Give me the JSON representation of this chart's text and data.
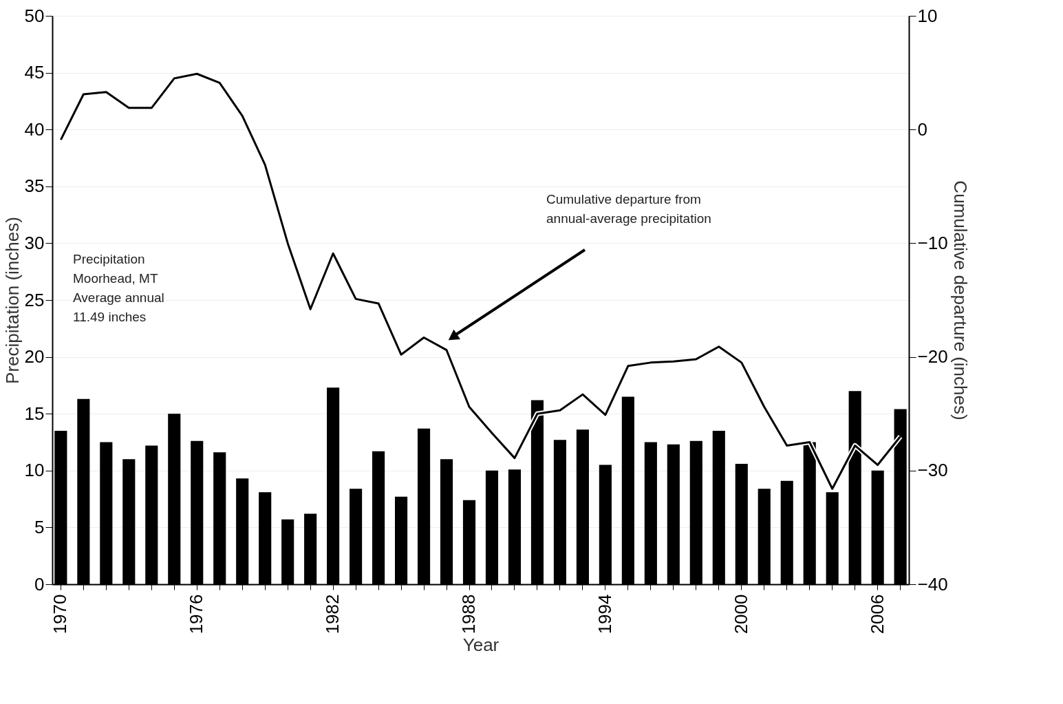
{
  "chart_data": {
    "type": "bar",
    "categories": [
      "1970",
      null,
      null,
      null,
      null,
      null,
      "1976",
      null,
      null,
      null,
      null,
      null,
      "1982",
      null,
      null,
      null,
      null,
      null,
      "1988",
      null,
      null,
      null,
      null,
      null,
      "1994",
      null,
      null,
      null,
      null,
      null,
      "2000",
      null,
      null,
      null,
      null,
      null,
      "2006",
      null
    ],
    "series": [
      {
        "color": "#000000",
        "values": [
          13.5,
          16.3,
          12.5,
          11.0,
          12.2,
          15.0,
          12.6,
          11.6,
          9.3,
          8.1,
          5.7,
          6.2,
          17.3,
          8.4,
          11.7,
          7.7,
          13.7,
          11.0,
          7.4,
          10.0,
          10.1,
          16.2,
          12.7,
          13.6,
          10.5,
          16.5,
          12.5,
          12.3,
          12.6,
          13.5,
          10.6,
          8.4,
          9.1,
          12.5,
          8.1,
          17.0,
          10.0,
          15.4
        ]
      },
      {
        "type": "line",
        "axis": "y2",
        "color": "#000000",
        "values": [
          -0.9,
          3.1,
          3.3,
          1.9,
          1.9,
          4.5,
          4.9,
          4.1,
          1.2,
          -3.1,
          -10.0,
          -15.8,
          -10.9,
          -14.9,
          -15.3,
          -19.8,
          -18.3,
          -19.4,
          -24.4,
          -26.7,
          -28.9,
          -25.0,
          -24.7,
          -23.3,
          -25.1,
          -20.8,
          -20.5,
          -20.4,
          -20.2,
          -19.1,
          -20.5,
          -24.4,
          -27.8,
          -27.5,
          -31.6,
          -27.8,
          -29.5,
          -27.0
        ]
      }
    ],
    "xlabel": "Year",
    "ylabel": "Precipitation (inches)",
    "y2label": "Cumulative departure (inches)",
    "ylim": [
      0,
      50
    ],
    "yticks": [
      0,
      5,
      10,
      15,
      20,
      25,
      30,
      35,
      40,
      45,
      50
    ],
    "y2lim": [
      -40,
      10
    ],
    "y2ticks": [
      -40,
      -30,
      -20,
      -10,
      0,
      10
    ],
    "grid": "y",
    "annotations": [
      "Precipitation\nMoorhead, MT\nAverage annual\n11.49 inches",
      "Cumulative departure from\nannual-average precipitation"
    ]
  }
}
